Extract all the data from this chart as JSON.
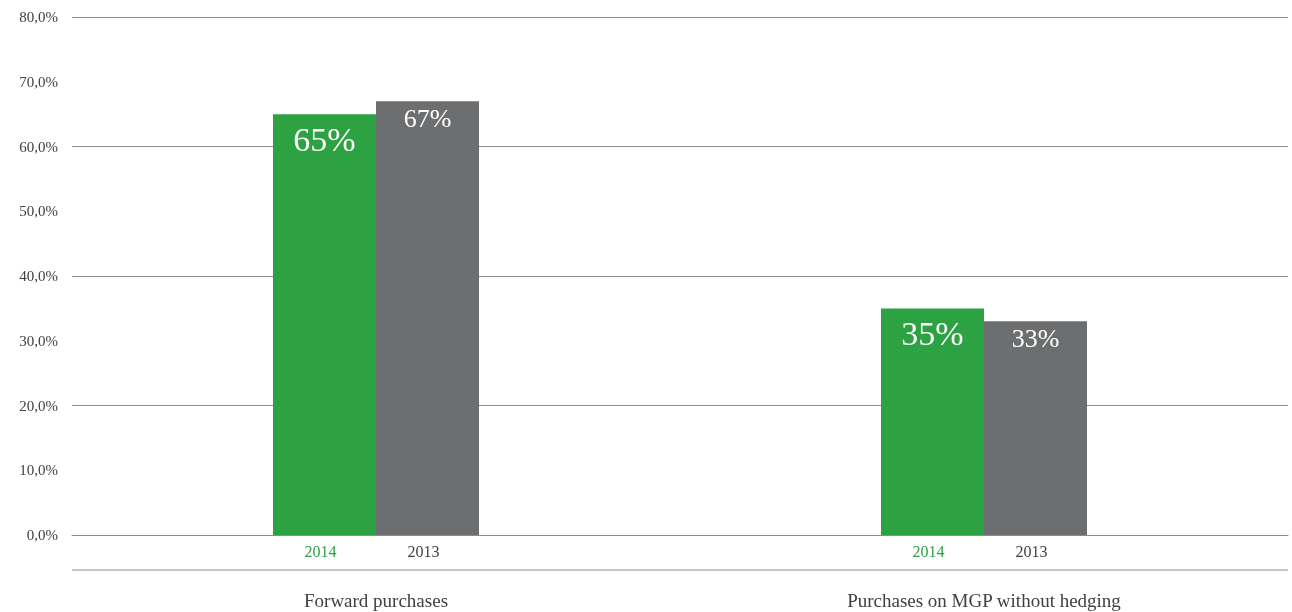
{
  "chart_data": {
    "type": "bar",
    "categories": [
      "Forward purchases",
      "Purchases on MGP without hedging"
    ],
    "series": [
      {
        "name": "2014",
        "color": "#2ca243",
        "values": [
          65,
          35
        ],
        "value_labels": [
          "65%",
          "35%"
        ]
      },
      {
        "name": "2013",
        "color": "#6d6e70",
        "values": [
          67,
          33
        ],
        "value_labels": [
          "67%",
          "33%"
        ]
      }
    ],
    "ylim": [
      0,
      80
    ],
    "yticks": [
      {
        "value": 0,
        "label": "0,0%"
      },
      {
        "value": 10,
        "label": "10,0%"
      },
      {
        "value": 20,
        "label": "20,0%"
      },
      {
        "value": 30,
        "label": "30,0%"
      },
      {
        "value": 40,
        "label": "40,0%"
      },
      {
        "value": 50,
        "label": "50,0%"
      },
      {
        "value": 60,
        "label": "60,0%"
      },
      {
        "value": 70,
        "label": "70,0%"
      },
      {
        "value": 80,
        "label": "80,0%"
      }
    ],
    "grid": "y",
    "legend": false
  }
}
